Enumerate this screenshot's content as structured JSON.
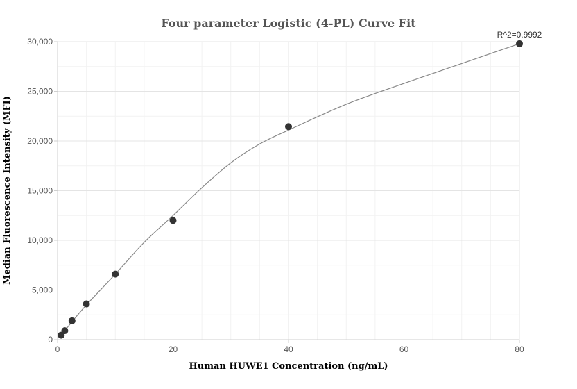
{
  "chart_data": {
    "type": "scatter",
    "title": "Four parameter Logistic (4-PL) Curve Fit",
    "xlabel": "Human HUWE1 Concentration (ng/mL)",
    "ylabel": "Median Fluorescence Intensity (MFI)",
    "xlim": [
      0,
      80
    ],
    "ylim": [
      0,
      30000
    ],
    "x_ticks": [
      0,
      20,
      40,
      60,
      80
    ],
    "x_tick_labels": [
      "0",
      "20",
      "40",
      "60",
      "80"
    ],
    "y_ticks": [
      0,
      5000,
      10000,
      15000,
      20000,
      25000,
      30000
    ],
    "y_tick_labels": [
      "0",
      "5,000",
      "10,000",
      "15,000",
      "20,000",
      "25,000",
      "30,000"
    ],
    "grid": true,
    "annotation": "R^2=0.9992",
    "points": {
      "x": [
        0.625,
        1.25,
        2.5,
        5,
        10,
        20,
        40,
        80
      ],
      "y": [
        450,
        900,
        1900,
        3600,
        6600,
        12000,
        21450,
        29800
      ]
    },
    "fit_curve": {
      "x": [
        0.625,
        2.5,
        5,
        10,
        15,
        20,
        25,
        30,
        35,
        40,
        50,
        60,
        70,
        80
      ],
      "y": [
        420,
        1800,
        3500,
        6600,
        9800,
        12500,
        15300,
        17800,
        19700,
        21100,
        23700,
        25800,
        27800,
        29800
      ]
    },
    "colors": {
      "points": "#333333",
      "curve": "#888888"
    }
  }
}
